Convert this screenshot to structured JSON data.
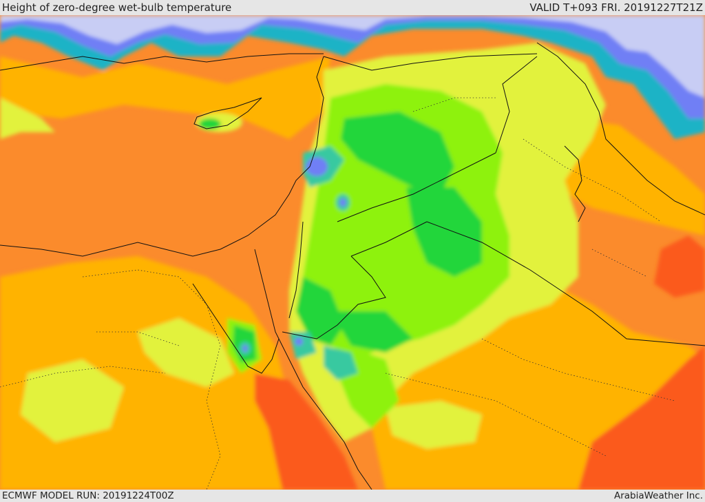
{
  "header": {
    "title": "Height of zero-degree wet-bulb temperature",
    "valid": "VALID T+093 FRI. 20191227T21Z"
  },
  "footer": {
    "model_run": "ECMWF MODEL RUN: 20191224T00Z",
    "credit": "ArabiaWeather Inc."
  },
  "colors": {
    "sea_level": "#c8cdf4",
    "very_low": "#6f7ff5",
    "low": "#1fb3c6",
    "teal": "#38c9a0",
    "green": "#22d63a",
    "lime": "#8ef20f",
    "yellow": "#e2f23c",
    "amber": "#ffb300",
    "orange": "#fb8b2c",
    "red": "#fb5a1a"
  }
}
